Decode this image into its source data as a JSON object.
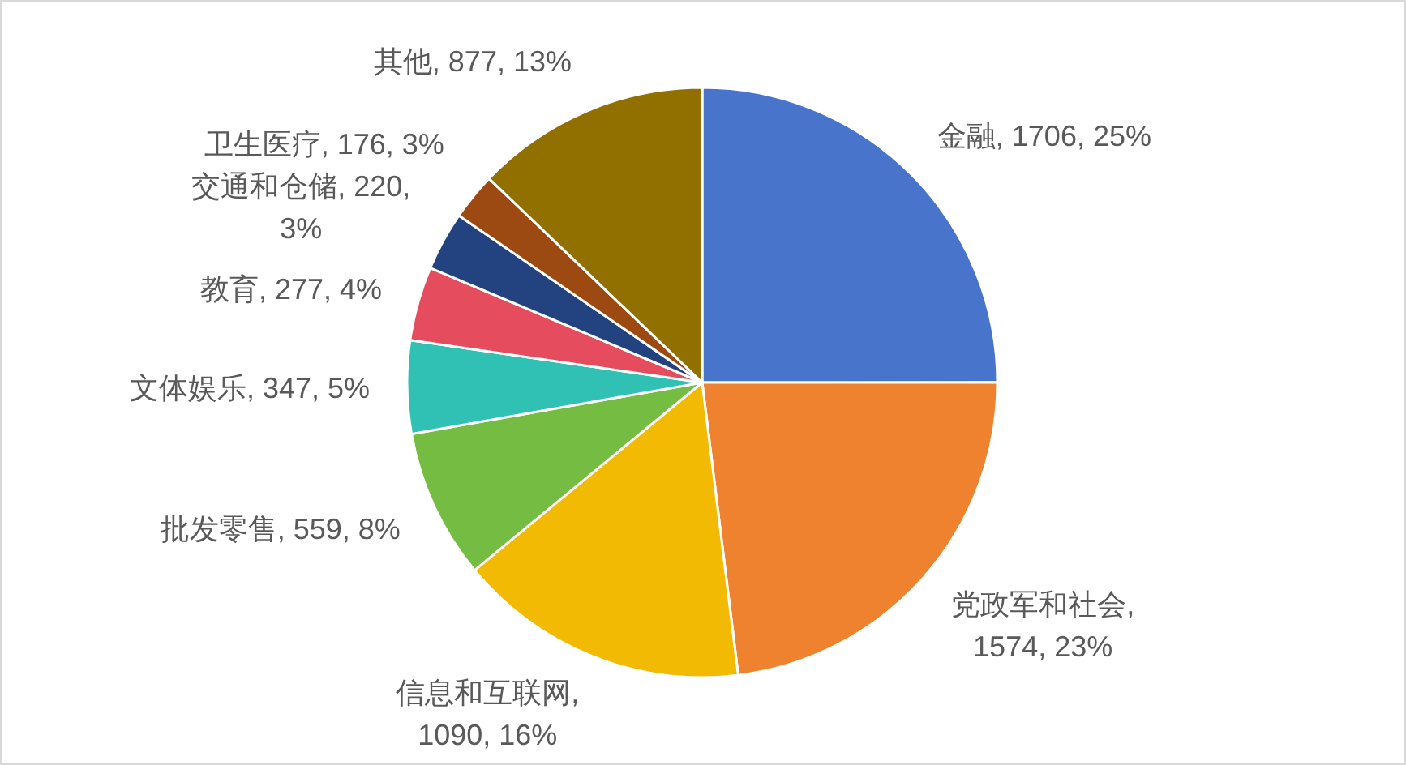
{
  "chart_data": {
    "type": "pie",
    "categories": [
      "金融",
      "党政军和社会",
      "信息和互联网",
      "批发零售",
      "文体娱乐",
      "教育",
      "交通和仓储",
      "卫生医疗",
      "其他"
    ],
    "values": [
      1706,
      1574,
      1090,
      559,
      347,
      277,
      220,
      176,
      877
    ],
    "colors": [
      "#4874cb",
      "#ee822f",
      "#f2ba02",
      "#75bd42",
      "#30c0b4",
      "#e54c5e",
      "#22437f",
      "#9c4a11",
      "#917000"
    ],
    "value_labels": [
      ", 1706, 25%",
      ", 1574, 23%",
      ", 1090, 16%",
      ", 559, 8%",
      ", 347, 5%",
      ", 277, 4%",
      ", 220, 3%",
      ", 176, 3%",
      ", 877, 13%"
    ]
  }
}
